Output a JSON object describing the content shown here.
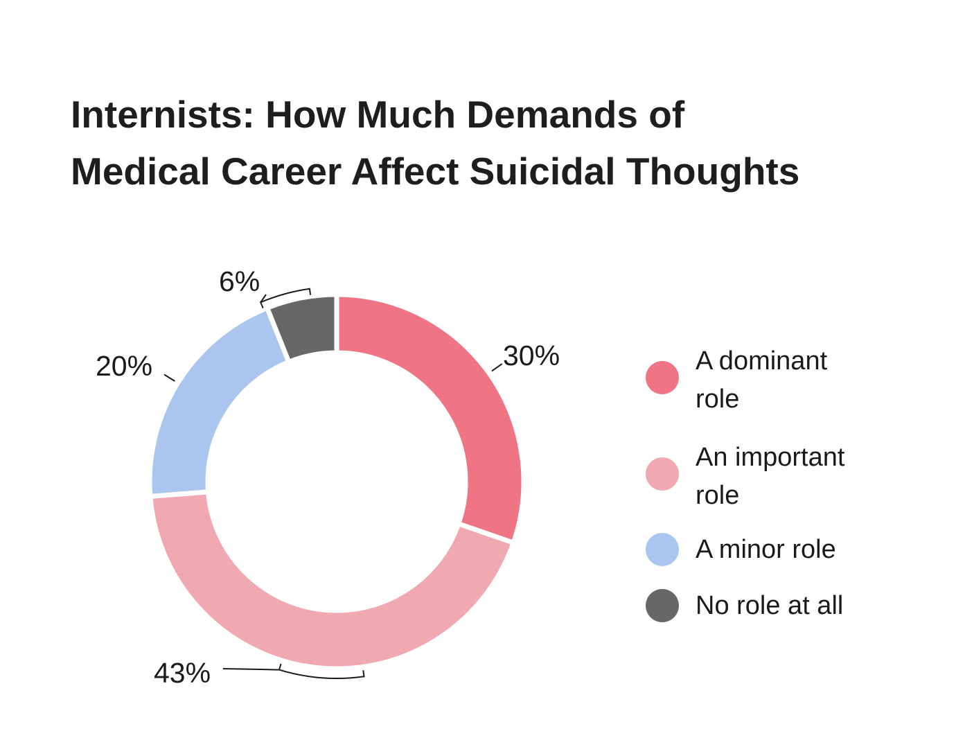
{
  "chart_data": {
    "type": "pie",
    "donut": true,
    "title_lines": [
      "Internists: How Much Demands of",
      "Medical Career Affect Suicidal Thoughts"
    ],
    "categories": [
      "A dominant role",
      "An important role",
      "A minor role",
      "No role at all"
    ],
    "legend_lines": [
      [
        "A dominant",
        "role"
      ],
      [
        "An important",
        "role"
      ],
      [
        "A minor role"
      ],
      [
        "No role at all"
      ]
    ],
    "values": [
      30,
      43,
      20,
      6
    ],
    "data_labels": [
      "30%",
      "43%",
      "20%",
      "6%"
    ],
    "colors": [
      "#ef7585",
      "#f1a9b1",
      "#aac6ef",
      "#676767"
    ],
    "legend_position": "right"
  }
}
